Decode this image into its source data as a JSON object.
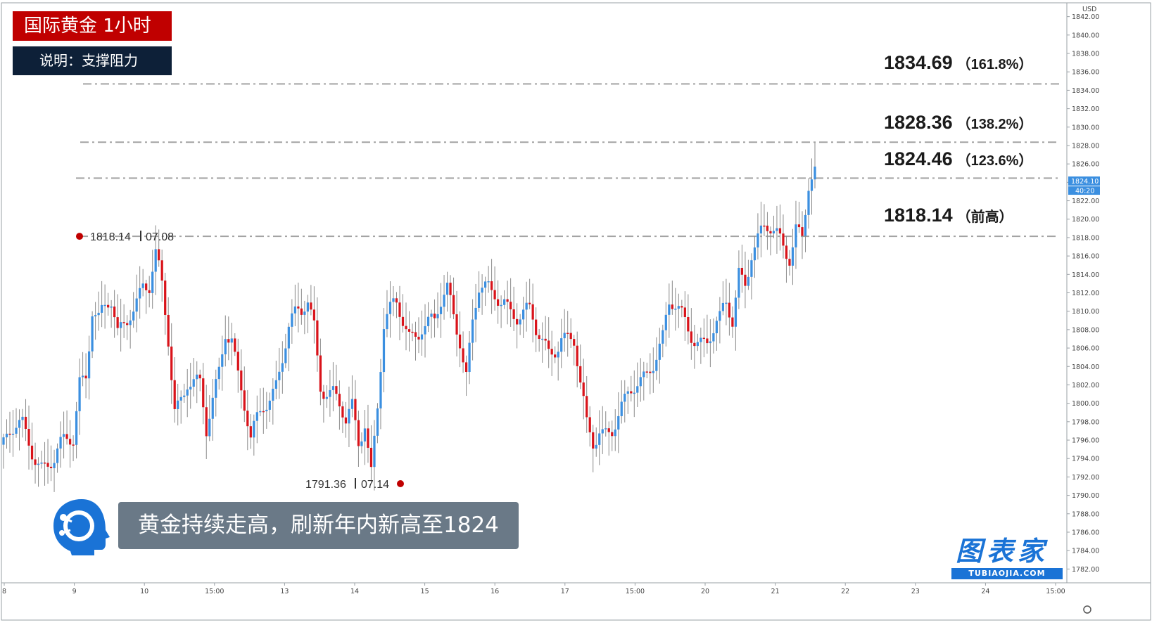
{
  "header": {
    "title": "国际黄金 1小时",
    "subtitle": "说明：支撑阻力"
  },
  "caption": "黄金持续走高，刷新年内新高至1824",
  "brand": {
    "name": "图表家",
    "url": "TUBIAOJIA.COM"
  },
  "levels": [
    {
      "price": "1834.69",
      "note": "（161.8%）"
    },
    {
      "price": "1828.36",
      "note": "（138.2%）"
    },
    {
      "price": "1824.46",
      "note": "（123.6%）"
    },
    {
      "price": "1818.14",
      "note": "（前高）"
    }
  ],
  "colors": {
    "up": "#3b8fe0",
    "down": "#d9131a",
    "title_bg": "#c00000",
    "subtitle_bg": "#0d2038",
    "caption_bg": "#6a7987",
    "brand": "#1a73d6"
  },
  "chart_data": {
    "type": "candlestick",
    "currency_label": "USD",
    "ylim": [
      1780.5,
      1843.5
    ],
    "y_ticks": [
      "1842.00",
      "1840.00",
      "1838.00",
      "1836.00",
      "1834.00",
      "1832.00",
      "1830.00",
      "1828.00",
      "1826.00",
      "1824.00",
      "1822.00",
      "1820.00",
      "1818.00",
      "1816.00",
      "1814.00",
      "1812.00",
      "1810.00",
      "1808.00",
      "1806.00",
      "1804.00",
      "1802.00",
      "1800.00",
      "1798.00",
      "1796.00",
      "1794.00",
      "1792.00",
      "1790.00",
      "1788.00",
      "1786.00",
      "1784.00",
      "1782.00"
    ],
    "x_ticks": [
      "8",
      "9",
      "10",
      "15:00",
      "13",
      "14",
      "15",
      "16",
      "17",
      "15:00",
      "20",
      "21",
      "22",
      "23",
      "24",
      "15:00"
    ],
    "last_price": "1824.10",
    "countdown": "40:20",
    "horizontal_lines": [
      1834.69,
      1828.36,
      1824.46,
      1818.14
    ],
    "annotations": [
      {
        "price": "1818.14",
        "date": "07.08"
      },
      {
        "price": "1791.36",
        "date": "07.14"
      }
    ],
    "series": [
      {
        "segments": [
          [
            0,
            1795.5
          ],
          [
            6,
            1797.0
          ],
          [
            12,
            1794.0
          ],
          [
            16,
            1793.5
          ],
          [
            22,
            1796.0
          ],
          [
            24,
            1803.0
          ],
          [
            26,
            1804.0
          ],
          [
            28,
            1811.0
          ],
          [
            30,
            1809.0
          ],
          [
            34,
            1810.0
          ],
          [
            36,
            1807.0
          ],
          [
            40,
            1811.0
          ],
          [
            44,
            1813.0
          ],
          [
            46,
            1812.0
          ],
          [
            48,
            1815.0
          ],
          [
            50,
            1812.0
          ],
          [
            52,
            1807.0
          ],
          [
            54,
            1800.0
          ],
          [
            58,
            1803.0
          ],
          [
            62,
            1801.0
          ],
          [
            64,
            1796.0
          ],
          [
            68,
            1804.0
          ],
          [
            70,
            1809.0
          ],
          [
            72,
            1808.0
          ],
          [
            74,
            1803.0
          ],
          [
            78,
            1795.0
          ],
          [
            82,
            1800.0
          ],
          [
            86,
            1803.0
          ],
          [
            90,
            1808.0
          ],
          [
            94,
            1809.0
          ],
          [
            96,
            1811.0
          ],
          [
            98,
            1809.0
          ],
          [
            100,
            1803.0
          ],
          [
            104,
            1801.0
          ],
          [
            108,
            1797.0
          ],
          [
            110,
            1799.0
          ],
          [
            112,
            1796.0
          ],
          [
            114,
            1799.0
          ],
          [
            116,
            1793.5
          ],
          [
            118,
            1800.0
          ],
          [
            120,
            1808.0
          ],
          [
            124,
            1810.0
          ],
          [
            128,
            1808.0
          ],
          [
            132,
            1809.0
          ],
          [
            136,
            1808.0
          ],
          [
            140,
            1812.0
          ],
          [
            144,
            1808.0
          ],
          [
            146,
            1804.0
          ],
          [
            148,
            1809.0
          ],
          [
            150,
            1812.0
          ],
          [
            154,
            1811.0
          ],
          [
            158,
            1812.0
          ],
          [
            162,
            1810.0
          ],
          [
            166,
            1809.0
          ],
          [
            168,
            1807.0
          ],
          [
            172,
            1806.0
          ],
          [
            176,
            1808.0
          ],
          [
            180,
            1806.0
          ],
          [
            182,
            1801.0
          ],
          [
            184,
            1797.0
          ],
          [
            186,
            1796.0
          ],
          [
            188,
            1798.0
          ],
          [
            192,
            1797.5
          ],
          [
            196,
            1799.0
          ],
          [
            200,
            1802.0
          ],
          [
            204,
            1805.0
          ],
          [
            208,
            1807.0
          ],
          [
            210,
            1810.0
          ],
          [
            214,
            1809.0
          ],
          [
            218,
            1808.0
          ],
          [
            222,
            1807.0
          ],
          [
            226,
            1808.0
          ],
          [
            228,
            1810.0
          ],
          [
            230,
            1809.0
          ],
          [
            232,
            1815.0
          ],
          [
            234,
            1814.0
          ],
          [
            236,
            1817.0
          ],
          [
            240,
            1818.0
          ],
          [
            244,
            1818.0
          ],
          [
            248,
            1817.0
          ],
          [
            250,
            1820.0
          ],
          [
            252,
            1818.0
          ],
          [
            254,
            1823.0
          ],
          [
            256,
            1824.0
          ]
        ]
      }
    ]
  }
}
